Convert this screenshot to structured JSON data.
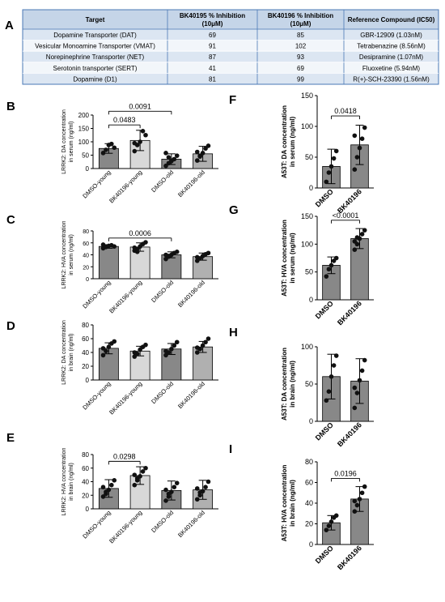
{
  "panel_letters": {
    "A": "A",
    "B": "B",
    "C": "C",
    "D": "D",
    "E": "E",
    "F": "F",
    "G": "G",
    "H": "H",
    "I": "I"
  },
  "table": {
    "headers": [
      "Target",
      "BK40195 % Inhibition (10μM)",
      "BK40196 % Inhibition (10μM)",
      "Reference Compound (IC50)"
    ],
    "rows": [
      [
        "Dopamine Transporter (DAT)",
        "69",
        "85",
        "GBR-12909 (1.03nM)"
      ],
      [
        "Vesicular Monoamine Transporter (VMAT)",
        "91",
        "102",
        "Tetrabenazine (8.56nM)"
      ],
      [
        "Norepinephrine Transporter (NET)",
        "87",
        "93",
        "Desipramine (1.07nM)"
      ],
      [
        "Serotonin transporter (SERT)",
        "41",
        "69",
        "Fluoxetine (5.94nM)"
      ],
      [
        "Dopamine (D1)",
        "81",
        "99",
        "R(+)-SCH-23390 (1.56nM)"
      ]
    ],
    "colors": {
      "header_bg": "#c5d5e8",
      "row_bg": "#dce6f2",
      "row_alt_bg": "#f2f6fa",
      "border": "#4a78b5"
    }
  },
  "chart_data": [
    {
      "panel": "B",
      "type": "bar",
      "ylabel": "LRRK2: DA concentration in serum (ng/ml)",
      "ylim": [
        0,
        200
      ],
      "yticks": [
        0,
        50,
        100,
        150,
        200
      ],
      "categories": [
        "DMSO-young",
        "BK40196-young",
        "DMSO-old",
        "BK40196-old"
      ],
      "values": [
        75,
        105,
        35,
        55
      ],
      "errors": [
        18,
        38,
        20,
        28
      ],
      "points": [
        [
          58,
          70,
          88,
          92,
          78
        ],
        [
          65,
          88,
          100,
          140,
          125,
          95
        ],
        [
          10,
          20,
          28,
          35,
          48,
          58,
          42,
          30
        ],
        [
          30,
          45,
          58,
          75,
          85,
          62,
          48
        ]
      ],
      "brackets": [
        {
          "from": 0,
          "to": 1,
          "label": "0.0483"
        },
        {
          "from": 0,
          "to": 2,
          "label": "0.0091"
        }
      ]
    },
    {
      "panel": "C",
      "type": "bar",
      "ylabel": "LRRK2: HVA concentration in serum (ng/ml)",
      "ylim": [
        0,
        80
      ],
      "yticks": [
        0,
        20,
        40,
        60,
        80
      ],
      "categories": [
        "DMSO-young",
        "BK40196-young",
        "DMSO-old",
        "BK40196-old"
      ],
      "values": [
        54,
        53,
        40,
        37
      ],
      "errors": [
        3,
        7,
        5,
        6
      ],
      "points": [
        [
          51,
          53,
          55,
          56,
          54,
          57
        ],
        [
          47,
          50,
          54,
          58,
          61,
          52,
          45
        ],
        [
          33,
          37,
          40,
          43,
          45,
          40,
          38
        ],
        [
          30,
          34,
          38,
          41,
          43,
          36
        ]
      ],
      "brackets": [
        {
          "from": 0,
          "to": 2,
          "label": "0.0006"
        }
      ]
    },
    {
      "panel": "D",
      "type": "bar",
      "ylabel": "LRRK2: DA concentration in brain (ng/ml)",
      "ylim": [
        0,
        80
      ],
      "yticks": [
        0,
        20,
        40,
        60,
        80
      ],
      "categories": [
        "DMSO-young",
        "BK40196-young",
        "DMSO-old",
        "BK40196-old"
      ],
      "values": [
        46,
        42,
        45,
        48
      ],
      "errors": [
        8,
        7,
        8,
        8
      ],
      "points": [
        [
          36,
          42,
          48,
          53,
          56,
          46
        ],
        [
          34,
          38,
          44,
          48,
          51,
          40
        ],
        [
          36,
          40,
          45,
          50,
          55,
          42
        ],
        [
          40,
          45,
          50,
          55,
          60,
          47
        ]
      ],
      "brackets": []
    },
    {
      "panel": "E",
      "type": "bar",
      "ylabel": "LRRK2: HVA concentration in brain (ng/ml)",
      "ylim": [
        0,
        80
      ],
      "yticks": [
        0,
        20,
        40,
        60,
        80
      ],
      "categories": [
        "DMSO-young",
        "BK40196-young",
        "DMSO-old",
        "BK40196-old"
      ],
      "values": [
        30,
        49,
        27,
        28
      ],
      "errors": [
        13,
        13,
        14,
        14
      ],
      "points": [
        [
          18,
          22,
          28,
          35,
          42,
          32,
          25
        ],
        [
          35,
          42,
          48,
          55,
          60,
          50,
          45
        ],
        [
          12,
          18,
          25,
          32,
          38,
          28,
          22
        ],
        [
          14,
          20,
          26,
          32,
          40,
          30,
          24
        ]
      ],
      "brackets": [
        {
          "from": 0,
          "to": 1,
          "label": "0.0298"
        }
      ]
    },
    {
      "panel": "F",
      "type": "bar",
      "ylabel": "A53T: DA concentration in serum (ng/ml)",
      "ylim": [
        0,
        150
      ],
      "yticks": [
        0,
        50,
        100,
        150
      ],
      "categories": [
        "DMSO",
        "BK40196"
      ],
      "values": [
        35,
        70
      ],
      "errors": [
        28,
        32
      ],
      "points": [
        [
          10,
          25,
          35,
          48,
          60
        ],
        [
          30,
          50,
          65,
          80,
          98,
          85
        ]
      ],
      "brackets": [
        {
          "from": 0,
          "to": 1,
          "label": "0.0418"
        }
      ]
    },
    {
      "panel": "G",
      "type": "bar",
      "ylabel": "A53T: HVA concentration in serum (ng/ml)",
      "ylim": [
        0,
        150
      ],
      "yticks": [
        0,
        50,
        100,
        150
      ],
      "categories": [
        "DMSO",
        "BK40196"
      ],
      "values": [
        62,
        110
      ],
      "errors": [
        15,
        18
      ],
      "points": [
        [
          42,
          55,
          62,
          70,
          75
        ],
        [
          90,
          100,
          110,
          118,
          125,
          105,
          112
        ]
      ],
      "brackets": [
        {
          "from": 0,
          "to": 1,
          "label": "<0.0001"
        }
      ]
    },
    {
      "panel": "H",
      "type": "bar",
      "ylabel": "A53T: DA concentration in brain (ng/ml)",
      "ylim": [
        0,
        100
      ],
      "yticks": [
        0,
        50,
        100
      ],
      "categories": [
        "DMSO",
        "BK40196"
      ],
      "values": [
        60,
        54
      ],
      "errors": [
        30,
        30
      ],
      "points": [
        [
          28,
          40,
          60,
          75,
          88
        ],
        [
          18,
          38,
          55,
          68,
          82,
          45
        ]
      ],
      "brackets": []
    },
    {
      "panel": "I",
      "type": "bar",
      "ylabel": "A53T: HVA concentration in brain (ng/ml)",
      "ylim": [
        0,
        80
      ],
      "yticks": [
        0,
        20,
        40,
        60,
        80
      ],
      "categories": [
        "DMSO",
        "BK40196"
      ],
      "values": [
        21,
        44
      ],
      "errors": [
        7,
        12
      ],
      "points": [
        [
          14,
          18,
          22,
          26,
          28
        ],
        [
          32,
          38,
          44,
          50,
          56,
          42
        ]
      ],
      "brackets": [
        {
          "from": 0,
          "to": 1,
          "label": "0.0196"
        }
      ]
    }
  ],
  "bar_colors": [
    "#888888",
    "#d8d8d8",
    "#888888",
    "#b0b0b0"
  ],
  "two_group_bar_colors": [
    "#888888",
    "#888888"
  ]
}
